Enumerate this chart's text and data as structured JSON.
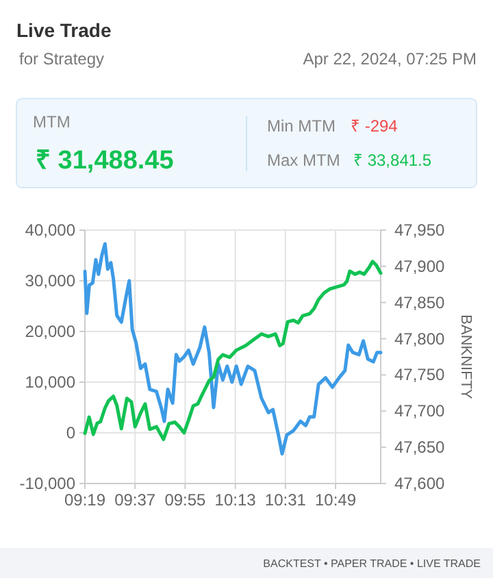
{
  "chart_data": {
    "type": "line",
    "title": "Live Trade",
    "subtitle": "for Strategy",
    "y2label": "BANKNIFTY",
    "annotations": [
      "Apr 22, 2024, 07:25 PM",
      "MTM",
      "₹ 31,488.45",
      "Min MTM",
      "₹ -294",
      "Max MTM",
      "₹ 33,841.5",
      "BACKTEST • PAPER TRADE • LIVE TRADE"
    ],
    "xlim": [
      9.3167,
      11.087
    ],
    "xticks": [
      {
        "value": 9.3167,
        "label": "09:19"
      },
      {
        "value": 9.6167,
        "label": "09:37"
      },
      {
        "value": 9.9167,
        "label": "09:55"
      },
      {
        "value": 10.2167,
        "label": "10:13"
      },
      {
        "value": 10.5167,
        "label": "10:31"
      },
      {
        "value": 10.8167,
        "label": "10:49"
      }
    ],
    "ylim": [
      -10000,
      40000
    ],
    "yticks": [
      {
        "value": -10000,
        "label": "-10,000"
      },
      {
        "value": 0,
        "label": "0"
      },
      {
        "value": 10000,
        "label": "10,000"
      },
      {
        "value": 20000,
        "label": "20,000"
      },
      {
        "value": 30000,
        "label": "30,000"
      },
      {
        "value": 40000,
        "label": "40,000"
      }
    ],
    "y2lim": [
      47600,
      47950
    ],
    "y2ticks": [
      {
        "value": 47600,
        "label": "47,600"
      },
      {
        "value": 47650,
        "label": "47,650"
      },
      {
        "value": 47700,
        "label": "47,700"
      },
      {
        "value": 47750,
        "label": "47,750"
      },
      {
        "value": 47800,
        "label": "47,800"
      },
      {
        "value": 47850,
        "label": "47,850"
      },
      {
        "value": 47900,
        "label": "47,900"
      },
      {
        "value": 47950,
        "label": "47,950"
      }
    ],
    "grid": true,
    "marker": "none",
    "line_style": "solid",
    "series": [
      {
        "color": "#3d9be6",
        "axis": "y2",
        "x": [
          9.317,
          9.328,
          9.343,
          9.363,
          9.382,
          9.398,
          9.418,
          9.437,
          9.453,
          9.472,
          9.487,
          9.508,
          9.535,
          9.563,
          9.582,
          9.6,
          9.623,
          9.65,
          9.677,
          9.705,
          9.745,
          9.773,
          9.792,
          9.813,
          9.842,
          9.863,
          9.882,
          9.91,
          9.937,
          9.965,
          10.005,
          10.033,
          10.06,
          10.087,
          10.115,
          10.142,
          10.168,
          10.197,
          10.223,
          10.252,
          10.292,
          10.333,
          10.373,
          10.415,
          10.442,
          10.475,
          10.497,
          10.525,
          10.565,
          10.607,
          10.638,
          10.662,
          10.688,
          10.715,
          10.757,
          10.798,
          10.838,
          10.873,
          10.893,
          10.92,
          10.957,
          10.983,
          11.01,
          11.043,
          11.065,
          11.087
        ],
        "values": [
          47893,
          47835,
          47874,
          47877,
          47909,
          47889,
          47915,
          47931,
          47896,
          47905,
          47883,
          47832,
          47823,
          47858,
          47880,
          47813,
          47794,
          47759,
          47765,
          47730,
          47727,
          47705,
          47686,
          47730,
          47711,
          47778,
          47769,
          47775,
          47784,
          47765,
          47788,
          47816,
          47781,
          47705,
          47765,
          47743,
          47762,
          47740,
          47762,
          47737,
          47762,
          47756,
          47718,
          47698,
          47702,
          47667,
          47641,
          47667,
          47673,
          47686,
          47680,
          47692,
          47692,
          47737,
          47746,
          47733,
          47746,
          47756,
          47791,
          47781,
          47778,
          47797,
          47772,
          47768,
          47781,
          47781
        ]
      },
      {
        "color": "#12c253",
        "x": [
          9.317,
          9.342,
          9.367,
          9.39,
          9.41,
          9.437,
          9.458,
          9.487,
          9.508,
          9.535,
          9.568,
          9.595,
          9.617,
          9.65,
          9.677,
          9.705,
          9.745,
          9.787,
          9.82,
          9.855,
          9.882,
          9.91,
          9.937,
          9.965,
          9.992,
          10.018,
          10.06,
          10.087,
          10.115,
          10.142,
          10.183,
          10.223,
          10.278,
          10.332,
          10.373,
          10.415,
          10.457,
          10.483,
          10.502,
          10.53,
          10.565,
          10.593,
          10.62,
          10.662,
          10.688,
          10.715,
          10.748,
          10.783,
          10.825,
          10.867,
          10.885,
          10.902,
          10.933,
          10.962,
          10.988,
          11.017,
          11.038,
          11.06,
          11.087
        ],
        "values": [
          -100,
          3100,
          -300,
          1900,
          2200,
          4900,
          6300,
          7200,
          5400,
          800,
          6800,
          6100,
          1200,
          3900,
          5700,
          700,
          1200,
          -1300,
          1800,
          2100,
          1200,
          0,
          2500,
          5300,
          5700,
          7500,
          10300,
          11000,
          14500,
          15400,
          14900,
          16300,
          17200,
          18500,
          19500,
          19000,
          19500,
          17200,
          17600,
          21900,
          22200,
          21700,
          23100,
          23500,
          24500,
          26300,
          27600,
          28400,
          28800,
          29200,
          29900,
          31900,
          31300,
          31700,
          31300,
          32600,
          33800,
          33100,
          31500
        ]
      }
    ]
  }
}
